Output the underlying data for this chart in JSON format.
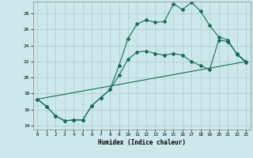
{
  "xlabel": "Humidex (Indice chaleur)",
  "bg_color": "#cce8ec",
  "grid_color": "#aaccd0",
  "line_color": "#1a6b5a",
  "xlim": [
    -0.5,
    23.5
  ],
  "ylim": [
    13.5,
    29.5
  ],
  "yticks": [
    14,
    16,
    18,
    20,
    22,
    24,
    26,
    28
  ],
  "xticks": [
    0,
    1,
    2,
    3,
    4,
    5,
    6,
    7,
    8,
    9,
    10,
    11,
    12,
    13,
    14,
    15,
    16,
    17,
    18,
    19,
    20,
    21,
    22,
    23
  ],
  "line1_x": [
    0,
    1,
    2,
    3,
    4,
    5,
    6,
    7,
    8,
    9,
    10,
    11,
    12,
    13,
    14,
    15,
    16,
    17,
    18,
    19,
    20,
    21,
    22,
    23
  ],
  "line1_y": [
    17.3,
    16.4,
    15.2,
    14.6,
    14.7,
    14.7,
    16.5,
    17.5,
    18.5,
    21.5,
    24.9,
    26.7,
    27.2,
    26.9,
    27.0,
    29.2,
    28.5,
    29.4,
    28.3,
    26.5,
    25.1,
    24.7,
    22.9,
    21.9
  ],
  "line2_x": [
    0,
    1,
    2,
    3,
    4,
    5,
    6,
    7,
    8,
    9,
    10,
    11,
    12,
    13,
    14,
    15,
    16,
    17,
    18,
    19,
    20,
    21,
    22,
    23
  ],
  "line2_y": [
    17.3,
    16.4,
    15.2,
    14.6,
    14.7,
    14.7,
    16.5,
    17.5,
    18.5,
    20.3,
    22.3,
    23.2,
    23.3,
    23.0,
    22.8,
    23.0,
    22.8,
    22.0,
    21.5,
    21.0,
    24.7,
    24.5,
    23.0,
    22.0
  ],
  "line3_x": [
    0,
    23
  ],
  "line3_y": [
    17.3,
    22.0
  ]
}
